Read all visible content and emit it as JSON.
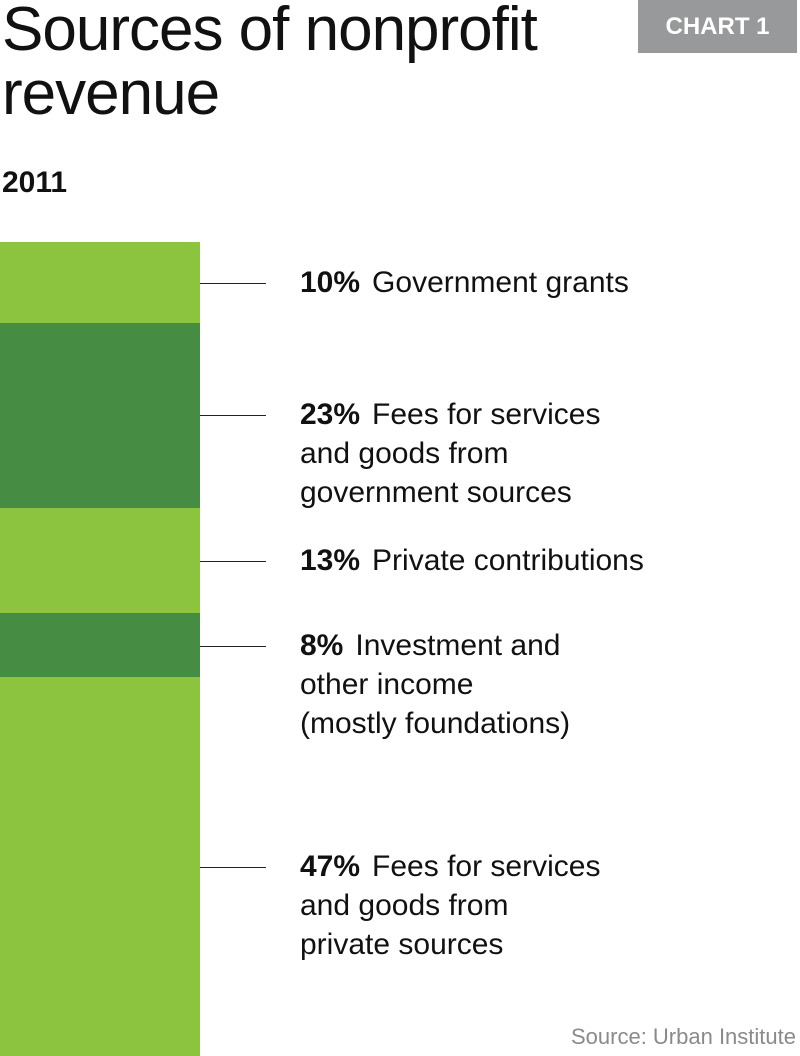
{
  "badge": "CHART 1",
  "chart_data": {
    "type": "bar",
    "stacked": true,
    "title": "Sources of nonprofit revenue",
    "subtitle": "2011",
    "unit": "%",
    "categories": [
      "Government grants",
      "Fees for services and goods from government sources",
      "Private contributions",
      "Investment and other income (mostly foundations)",
      "Fees for services and goods from private sources"
    ],
    "values": [
      10,
      23,
      13,
      8,
      47
    ],
    "value_labels": [
      "10%",
      "23%",
      "13%",
      "8%",
      "47%"
    ],
    "label_lines": [
      [
        "Government grants"
      ],
      [
        "Fees for services",
        "and goods from",
        "government sources"
      ],
      [
        "Private contributions"
      ],
      [
        "Investment and",
        "other income",
        "(mostly foundations)"
      ],
      [
        "Fees for services",
        "and goods from",
        "private sources"
      ]
    ],
    "colors": [
      "#8cc43f",
      "#468c42",
      "#8cc43f",
      "#468c42",
      "#8cc43f"
    ],
    "source": "Source: Urban Institute"
  }
}
